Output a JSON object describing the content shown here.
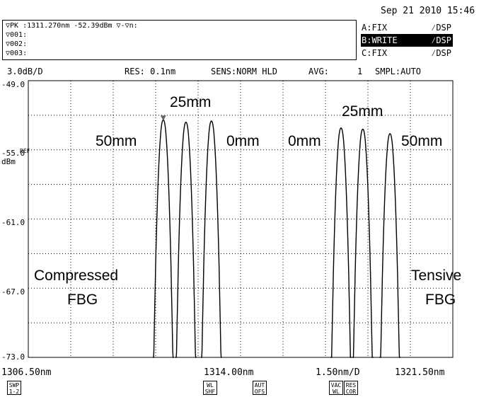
{
  "header": {
    "datetime": "Sep 21 2010 15:46"
  },
  "marker_box": {
    "peak_line": "▽PK :1311.270nm  -52.39dBm  ▽-▽n:",
    "m1": "▽001:",
    "m2": "▽002:",
    "m3": "▽003:"
  },
  "traces": [
    {
      "mode": "A:FIX",
      "dsp": "⁄DSP",
      "active": false
    },
    {
      "mode": "B:WRITE",
      "dsp": "⁄DSP",
      "active": true
    },
    {
      "mode": "C:FIX",
      "dsp": "⁄DSP",
      "active": false
    }
  ],
  "status": {
    "scale": "3.0dB/D",
    "res": "RES: 0.1nm",
    "sens": "SENS:NORM HLD",
    "avg_label": "AVG:",
    "avg_value": "1",
    "smpl": "SMPL:AUTO"
  },
  "axis": {
    "y_ticks": [
      "-49.0",
      "-55.0",
      "-61.0",
      "-67.0",
      "-73.0"
    ],
    "ref_label": "REF",
    "y_unit": "dBm",
    "x_start": "1306.50nm",
    "x_center": "1314.00nm",
    "x_per_div": "1.50nm/D",
    "x_end": "1321.50nm"
  },
  "annotations": {
    "left_50": "50mm",
    "left_25": "25mm",
    "left_0": "0mm",
    "right_0": "0mm",
    "right_25": "25mm",
    "right_50": "50mm",
    "compressed_1": "Compressed",
    "compressed_2": "FBG",
    "tensive_1": "Tensive",
    "tensive_2": "FBG"
  },
  "softkeys": [
    {
      "line1": "SWP",
      "line2": "1-2"
    },
    {
      "line1": "WL",
      "line2": "SHF"
    },
    {
      "line1": "AUT",
      "line2": "OFS"
    },
    {
      "line1": "VAC",
      "line2": "WL"
    },
    {
      "line1": "RES",
      "line2": "COR"
    }
  ],
  "chart_data": {
    "type": "line",
    "xlabel": "",
    "ylabel": "dBm",
    "xlim": [
      1306.5,
      1321.5
    ],
    "ylim": [
      -73.0,
      -49.0
    ],
    "x_divisions": 10,
    "y_divisions": 8,
    "grid": true,
    "peak_marker": {
      "x": 1311.27,
      "y": -52.39
    },
    "series": [
      {
        "peak_x": 1311.27,
        "peak_y": -52.4,
        "half_width": 0.37
      },
      {
        "peak_x": 1312.07,
        "peak_y": -52.6,
        "half_width": 0.37
      },
      {
        "peak_x": 1312.97,
        "peak_y": -52.5,
        "half_width": 0.37
      },
      {
        "peak_x": 1317.55,
        "peak_y": -53.1,
        "half_width": 0.37
      },
      {
        "peak_x": 1318.32,
        "peak_y": -53.2,
        "half_width": 0.37
      },
      {
        "peak_x": 1319.28,
        "peak_y": -53.6,
        "half_width": 0.37
      }
    ]
  }
}
